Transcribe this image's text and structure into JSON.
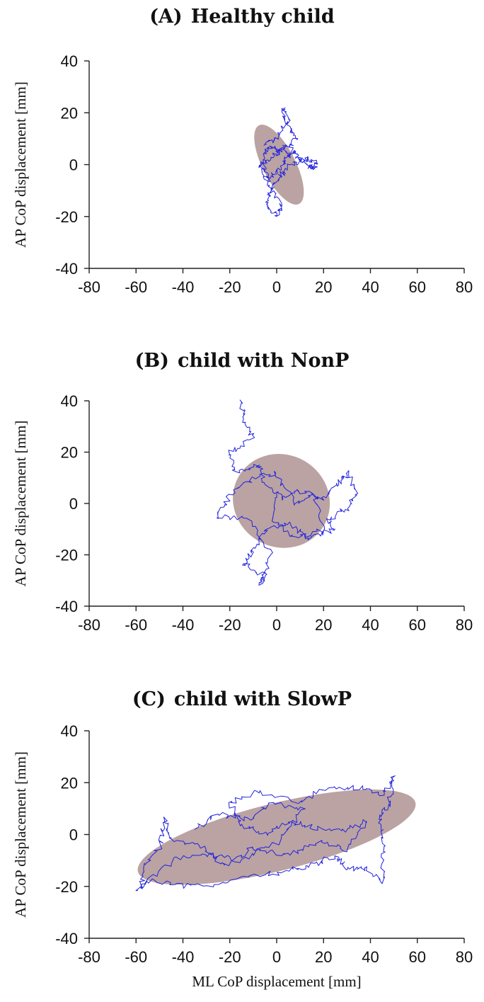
{
  "chart_data": [
    {
      "type": "scatter",
      "panel_label": "(A)",
      "title": "Healthy child",
      "ylabel": "AP CoP displacement [mm]",
      "xlabel": "",
      "xlim": [
        -80,
        80
      ],
      "ylim": [
        -40,
        40
      ],
      "xticks": [
        "-80",
        "-60",
        "-40",
        "-20",
        "0",
        "20",
        "40",
        "60",
        "80"
      ],
      "yticks": [
        "40",
        "20",
        "0",
        "-20",
        "-40"
      ],
      "ellipse": {
        "center": [
          1,
          0
        ],
        "rx": 7,
        "ry": 17,
        "angle_deg": 27
      },
      "trace_center": [
        2,
        0
      ],
      "trace_range": {
        "x": [
          -9,
          18
        ],
        "y": [
          -20,
          22
        ]
      },
      "trace_anchors": [
        [
          -6,
          8
        ],
        [
          0,
          10
        ],
        [
          4,
          16
        ],
        [
          3,
          22
        ],
        [
          6,
          14
        ],
        [
          8,
          10
        ],
        [
          5,
          4
        ],
        [
          2,
          6
        ],
        [
          -3,
          2
        ],
        [
          -7,
          0
        ],
        [
          -4,
          -6
        ],
        [
          0,
          -2
        ],
        [
          4,
          2
        ],
        [
          8,
          5
        ],
        [
          10,
          2
        ],
        [
          14,
          2
        ],
        [
          17,
          0
        ],
        [
          15,
          -2
        ],
        [
          12,
          1
        ],
        [
          6,
          0
        ],
        [
          2,
          -4
        ],
        [
          -2,
          -10
        ],
        [
          -5,
          -15
        ],
        [
          0,
          -20
        ],
        [
          2,
          -16
        ],
        [
          -3,
          -8
        ],
        [
          -6,
          3
        ],
        [
          -3,
          7
        ],
        [
          1,
          5
        ],
        [
          6,
          8
        ]
      ],
      "series_color": "#2222dd",
      "ellipse_color": "#ae9392"
    },
    {
      "type": "scatter",
      "panel_label": "(B)",
      "title": "child with NonP",
      "ylabel": "AP CoP displacement [mm]",
      "xlabel": "",
      "xlim": [
        -80,
        80
      ],
      "ylim": [
        -40,
        40
      ],
      "xticks": [
        "-80",
        "-60",
        "-40",
        "-20",
        "0",
        "20",
        "40",
        "60",
        "80"
      ],
      "yticks": [
        "40",
        "20",
        "0",
        "-20",
        "-40"
      ],
      "ellipse": {
        "center": [
          2,
          1
        ],
        "rx": 21,
        "ry": 18,
        "angle_deg": -30
      },
      "trace_center": [
        0,
        0
      ],
      "trace_range": {
        "x": [
          -26,
          36
        ],
        "y": [
          -31,
          40
        ]
      },
      "trace_anchors": [
        [
          -15,
          40
        ],
        [
          -14,
          32
        ],
        [
          -10,
          25
        ],
        [
          -20,
          20
        ],
        [
          -18,
          12
        ],
        [
          -8,
          15
        ],
        [
          -5,
          8
        ],
        [
          2,
          2
        ],
        [
          10,
          5
        ],
        [
          20,
          2
        ],
        [
          26,
          8
        ],
        [
          30,
          12
        ],
        [
          34,
          4
        ],
        [
          30,
          -2
        ],
        [
          22,
          -6
        ],
        [
          24,
          -10
        ],
        [
          14,
          -14
        ],
        [
          5,
          -8
        ],
        [
          -4,
          -10
        ],
        [
          -10,
          -18
        ],
        [
          -14,
          -24
        ],
        [
          -5,
          -28
        ],
        [
          -7,
          -31
        ],
        [
          -2,
          -20
        ],
        [
          -12,
          -6
        ],
        [
          -26,
          -5
        ],
        [
          -20,
          3
        ],
        [
          -10,
          10
        ],
        [
          0,
          12
        ],
        [
          8,
          0
        ],
        [
          16,
          4
        ],
        [
          20,
          -10
        ],
        [
          8,
          -14
        ],
        [
          -2,
          -6
        ],
        [
          0,
          4
        ]
      ],
      "series_color": "#2222dd",
      "ellipse_color": "#ae9392"
    },
    {
      "type": "scatter",
      "panel_label": "(C)",
      "title": "child with SlowP",
      "ylabel": "AP CoP displacement [mm]",
      "xlabel": "ML CoP displacement [mm]",
      "xlim": [
        -80,
        80
      ],
      "ylim": [
        -40,
        40
      ],
      "xticks": [
        "-80",
        "-60",
        "-40",
        "-20",
        "0",
        "20",
        "40",
        "60",
        "80"
      ],
      "yticks": [
        "40",
        "20",
        "0",
        "-20",
        "-40"
      ],
      "ellipse": {
        "center": [
          0,
          -1
        ],
        "rx": 61,
        "ry": 13,
        "angle_deg": 14
      },
      "trace_center": [
        -5,
        -2
      ],
      "trace_range": {
        "x": [
          -61,
          51
        ],
        "y": [
          -23,
          24
        ]
      },
      "trace_anchors": [
        [
          -60,
          -22
        ],
        [
          -55,
          -18
        ],
        [
          -40,
          -20
        ],
        [
          -25,
          -19
        ],
        [
          -10,
          -16
        ],
        [
          5,
          -14
        ],
        [
          15,
          -12
        ],
        [
          25,
          -8
        ],
        [
          30,
          -13
        ],
        [
          38,
          -13
        ],
        [
          45,
          -18
        ],
        [
          46,
          -5
        ],
        [
          44,
          6
        ],
        [
          48,
          12
        ],
        [
          50,
          22
        ],
        [
          45,
          15
        ],
        [
          35,
          18
        ],
        [
          20,
          18
        ],
        [
          10,
          12
        ],
        [
          -8,
          17
        ],
        [
          -20,
          12
        ],
        [
          -15,
          4
        ],
        [
          -5,
          0
        ],
        [
          5,
          5
        ],
        [
          15,
          3
        ],
        [
          28,
          1
        ],
        [
          38,
          5
        ],
        [
          30,
          -6
        ],
        [
          18,
          -3
        ],
        [
          5,
          -8
        ],
        [
          -10,
          -5
        ],
        [
          -22,
          -12
        ],
        [
          -32,
          -5
        ],
        [
          -45,
          -2
        ],
        [
          -48,
          6
        ],
        [
          -50,
          -5
        ],
        [
          -56,
          -12
        ],
        [
          -58,
          -20
        ],
        [
          -42,
          -9
        ],
        [
          -30,
          -8
        ],
        [
          -15,
          -10
        ],
        [
          0,
          -3
        ],
        [
          12,
          10
        ],
        [
          -2,
          12
        ],
        [
          -12,
          6
        ],
        [
          -25,
          8
        ],
        [
          -35,
          2
        ]
      ],
      "series_color": "#2222dd",
      "ellipse_color": "#ae9392"
    }
  ]
}
